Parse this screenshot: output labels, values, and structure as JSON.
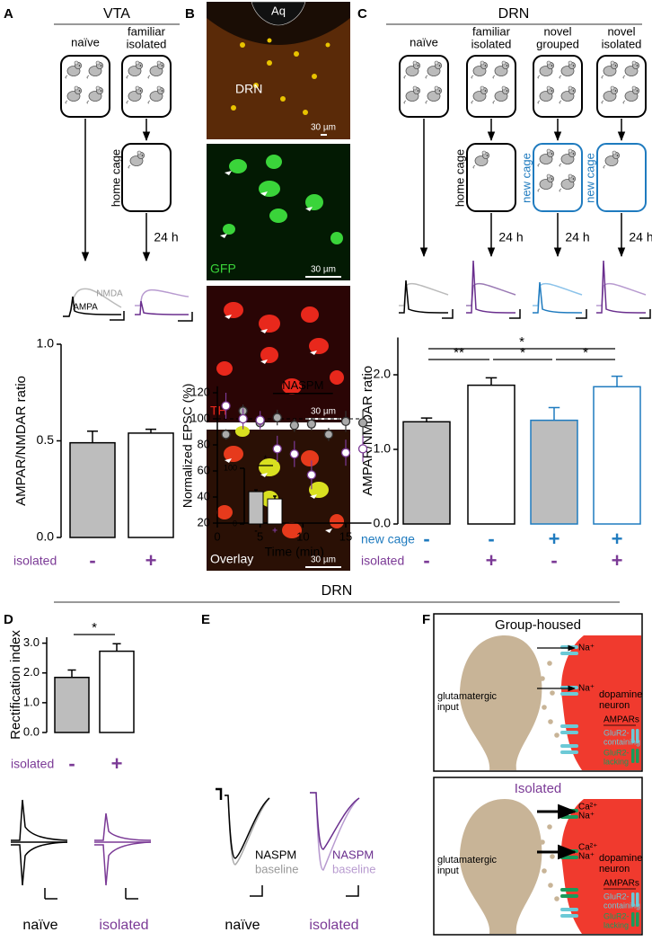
{
  "chart_data": [
    {
      "type": "bar",
      "ylabel": "AMPAR/NMDAR ratio",
      "values": [
        0.49,
        0.54
      ],
      "errors": [
        0.06,
        0.02
      ],
      "colors": [
        "#bdbdbd",
        "#ffffff"
      ],
      "edge_colors": [
        "#000000",
        "#000000"
      ],
      "ylim": [
        0,
        1
      ],
      "yticks": [
        {
          "value": 0,
          "label": "0.0"
        },
        {
          "value": 0.5,
          "label": "0.5"
        },
        {
          "value": 1,
          "label": "1.0"
        }
      ],
      "rows": [
        {
          "name": "isolated",
          "color": "#7b3a96",
          "labels": [
            "-",
            "+"
          ]
        }
      ],
      "significance": []
    },
    {
      "type": "bar",
      "ylabel": "AMPAR/NMDAR ratio",
      "values": [
        1.37,
        1.86,
        1.39,
        1.84
      ],
      "errors": [
        0.05,
        0.1,
        0.17,
        0.14
      ],
      "colors": [
        "#bdbdbd",
        "#ffffff",
        "#bdbdbd",
        "#ffffff"
      ],
      "edge_colors": [
        "#000000",
        "#000000",
        "#1f7bbf",
        "#1f7bbf"
      ],
      "ylim": [
        0,
        2.5
      ],
      "yticks": [
        {
          "value": 0,
          "label": "0.0"
        },
        {
          "value": 1,
          "label": "1.0"
        },
        {
          "value": 2,
          "label": "2.0"
        }
      ],
      "rows": [
        {
          "name": "new cage",
          "color": "#1f7bbf",
          "labels": [
            "-",
            "-",
            "+",
            "+"
          ]
        },
        {
          "name": "isolated",
          "color": "#7b3a96",
          "labels": [
            "-",
            "+",
            "-",
            "+"
          ]
        }
      ],
      "significance": [
        {
          "from": 0,
          "to": 1,
          "label": "**"
        },
        {
          "from": 1,
          "to": 2,
          "label": "*"
        },
        {
          "from": 2,
          "to": 3,
          "label": "*"
        },
        {
          "from": 0,
          "to": 3,
          "label": "*"
        }
      ]
    },
    {
      "type": "bar",
      "ylabel": "Rectification index",
      "values": [
        1.85,
        2.73
      ],
      "errors": [
        0.25,
        0.25
      ],
      "colors": [
        "#bdbdbd",
        "#ffffff"
      ],
      "edge_colors": [
        "#000000",
        "#000000"
      ],
      "ylim": [
        0,
        3.2
      ],
      "yticks": [
        {
          "value": 0,
          "label": "0.0"
        },
        {
          "value": 1,
          "label": "1.0"
        },
        {
          "value": 2,
          "label": "2.0"
        },
        {
          "value": 3,
          "label": "3.0"
        }
      ],
      "rows": [
        {
          "name": "isolated",
          "color": "#7b3a96",
          "labels": [
            "-",
            "+"
          ]
        }
      ],
      "significance": [
        {
          "from": 0,
          "to": 1,
          "label": "*"
        }
      ]
    },
    {
      "type": "scatter",
      "xlabel": "Time (min)",
      "ylabel": "Normalized EPSC (%)",
      "x": [
        1,
        3,
        5,
        7,
        9,
        11,
        13,
        15,
        17
      ],
      "series": [
        {
          "color": "#333333",
          "fill": "#aaaaaa",
          "values": [
            88,
            106,
            97,
            101,
            95,
            96,
            88,
            98,
            97
          ],
          "errors": [
            4,
            5,
            4,
            6,
            5,
            5,
            5,
            8,
            10
          ]
        },
        {
          "color": "#7b3a96",
          "fill": "#ffffff",
          "values": [
            110,
            100,
            99,
            77,
            73,
            57,
            null,
            74,
            77
          ],
          "errors": [
            10,
            8,
            7,
            10,
            10,
            11,
            null,
            10,
            10
          ]
        }
      ],
      "xlim": [
        0,
        18
      ],
      "xticks": [
        0,
        5,
        10,
        15
      ],
      "ylim": [
        20,
        125
      ],
      "yticks": [
        20,
        40,
        60,
        80,
        100,
        120
      ],
      "reference_value": 100,
      "annotation": {
        "text": "NASPM",
        "x": [
          6.5,
          13.5
        ]
      }
    },
    {
      "type": "bar",
      "values": [
        58,
        45
      ],
      "errors": [
        3,
        5
      ],
      "colors": [
        "#bdbdbd",
        "#ffffff"
      ],
      "edge_colors": [
        "#000000",
        "#000000"
      ],
      "ylim": [
        0,
        100
      ],
      "yticks": [
        0,
        100
      ],
      "rows": [
        {
          "labels": [
            "-",
            "+"
          ],
          "label_colors": [
            "#000000",
            "#7b3a96"
          ]
        }
      ],
      "significance": [
        {
          "from": 0,
          "to": 1,
          "label": "*"
        }
      ]
    }
  ],
  "figure": {
    "letters": [
      "A",
      "B",
      "C",
      "D",
      "E",
      "F"
    ],
    "vta_title": "VTA",
    "drn_title": "DRN",
    "drn_bottom_title": "DRN",
    "a_naive": "naïve",
    "a_familiar": "familiar",
    "a_isolated": "isolated",
    "a_home_cage": "home cage",
    "a_24h": "24 h",
    "a_nmda": "NMDA",
    "a_ampa": "AMPA",
    "b_aq": "Aq",
    "b_drn": "DRN",
    "b_scale": [
      "30 µm",
      "30 µm",
      "30 µm",
      "30 µm"
    ],
    "b_gfp": "GFP",
    "b_th": "TH",
    "b_overlay": "Overlay",
    "c_cages": [
      [
        "naïve"
      ],
      [
        "familiar",
        "isolated"
      ],
      [
        "novel",
        "grouped"
      ],
      [
        "novel",
        "isolated"
      ]
    ],
    "c_second_cages": [
      "home cage",
      "new cage",
      "new cage"
    ],
    "c_24h": [
      "24 h",
      "24 h",
      "24 h"
    ],
    "d_naive": "naïve",
    "d_isolated": "isolated",
    "e_naive": "naïve",
    "e_isolated": "isolated",
    "e_naspm": [
      "NASPM",
      "NASPM"
    ],
    "e_baseline": [
      "baseline",
      "baseline"
    ],
    "f_panels": [
      {
        "title": "Group-housed",
        "input": [
          "glutamatergic",
          "input"
        ],
        "neuron": [
          "dopamine",
          "neuron"
        ],
        "ions": [
          [
            "Na⁺"
          ],
          [
            "Na⁺"
          ]
        ],
        "legend_title": "AMPARs",
        "legend": [
          [
            "GluR2-",
            "containing"
          ],
          [
            "GluR2-",
            "lacking"
          ]
        ]
      },
      {
        "title": "Isolated",
        "input": [
          "glutamatergic",
          "input"
        ],
        "neuron": [
          "dopamine",
          "neuron"
        ],
        "ions": [
          [
            "Ca²⁺",
            "Na⁺"
          ],
          [
            "Ca²⁺",
            "Na⁺"
          ]
        ],
        "legend_title": "AMPARs",
        "legend": [
          [
            "GluR2-",
            "containing"
          ],
          [
            "GluR2-",
            "lacking"
          ]
        ]
      }
    ]
  }
}
